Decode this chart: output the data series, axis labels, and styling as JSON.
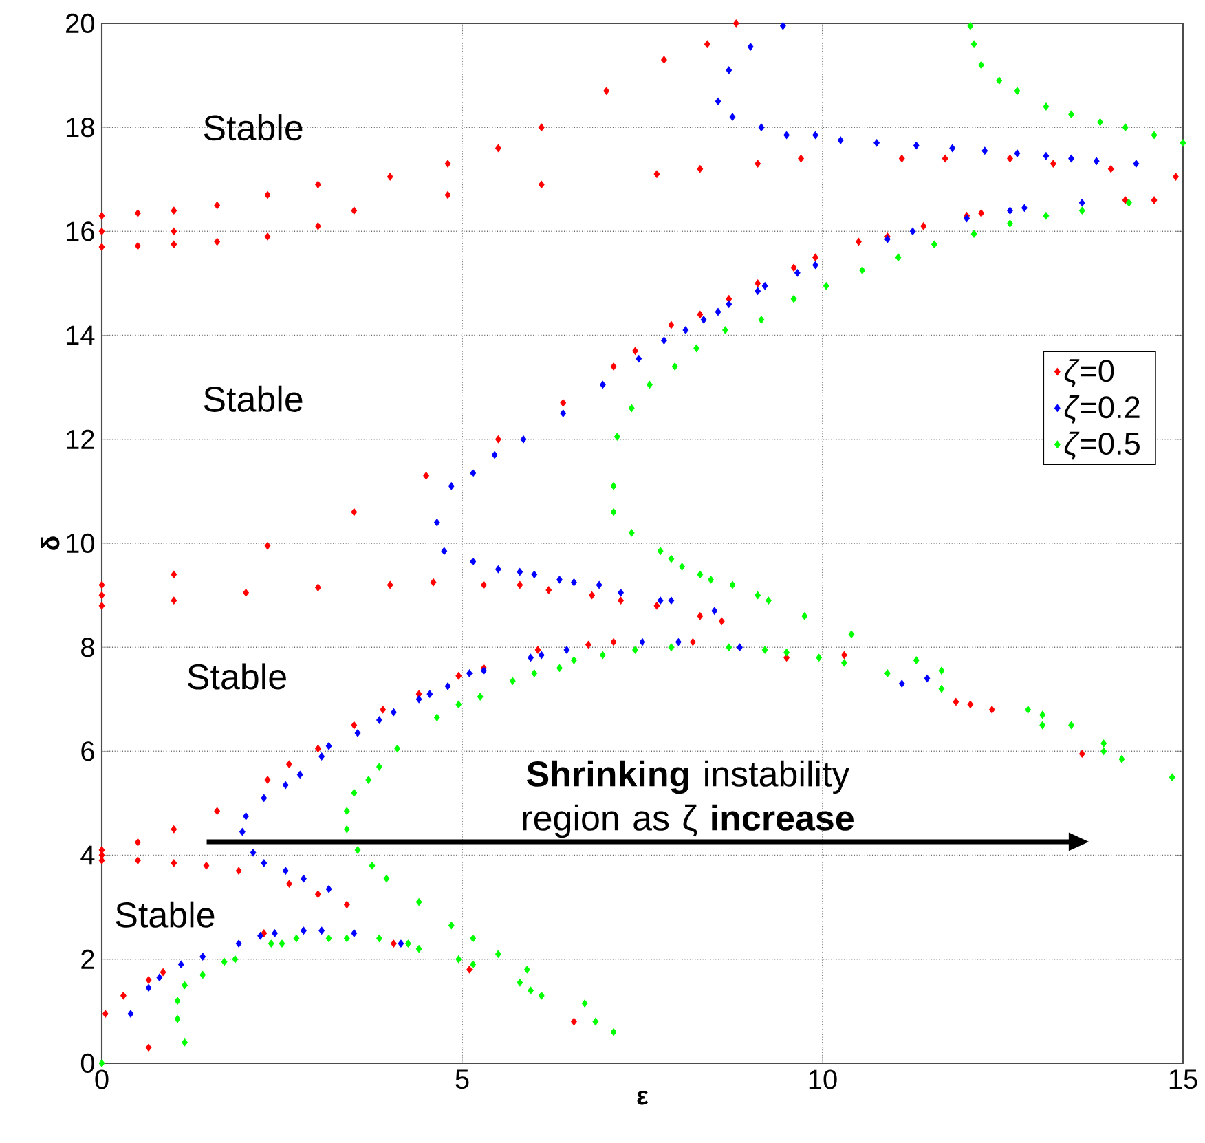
{
  "chart_data": {
    "type": "scatter",
    "xlabel": "ε",
    "ylabel": "δ",
    "xlim": [
      0,
      15
    ],
    "ylim": [
      0,
      20
    ],
    "xticks": [
      0,
      5,
      10,
      15
    ],
    "yticks": [
      0,
      2,
      4,
      6,
      8,
      10,
      12,
      14,
      16,
      18,
      20
    ],
    "grid": true,
    "legend": "right",
    "marker": "diamond",
    "annotations": [
      "Stable",
      "Stable",
      "Stable",
      "Stable",
      "**Shrinking** instability region as ζ **increase**"
    ],
    "series": [
      {
        "name": "*ζ*=0",
        "color": "#ff0000",
        "x": [
          0,
          0,
          0,
          0.5,
          0.5,
          1,
          1,
          1,
          1.6,
          1.6,
          2.3,
          2.3,
          3,
          3,
          3.5,
          4,
          4.8,
          4.8,
          5.5,
          6.1,
          6.1,
          7,
          7.7,
          7.8,
          8.3,
          8.4,
          8.8,
          9.1,
          9.7,
          11.1,
          11.7,
          12.6,
          13.2,
          14.0,
          0,
          0,
          0,
          1,
          1,
          2,
          2.3,
          3,
          3.5,
          4,
          4.5,
          4.6,
          5.3,
          5.5,
          5.8,
          6.2,
          6.4,
          6.8,
          7.1,
          7.2,
          7.4,
          7.7,
          7.9,
          8.3,
          8.3,
          8.6,
          8.7,
          9.1,
          9.5,
          9.6,
          9.9,
          10.5,
          10.9,
          11.4,
          12.0,
          12.2,
          14.2,
          14.6,
          14.9,
          0,
          0,
          0,
          0.5,
          0.5,
          1,
          1,
          1.45,
          1.6,
          1.9,
          2.3,
          2.6,
          2.6,
          3,
          3,
          3.4,
          3.5,
          3.9,
          4.05,
          4.4,
          4.95,
          5.1,
          5.3,
          6.05,
          6.55,
          6.75,
          7.1,
          8.2,
          10.3,
          11.85,
          12.05,
          12.35,
          13.6,
          0.05,
          0.3,
          0.65,
          0.65,
          0.85,
          2.25
        ],
        "values": [
          15.7,
          16.0,
          16.3,
          15.72,
          16.35,
          15.75,
          16.0,
          16.4,
          15.8,
          16.5,
          15.9,
          16.7,
          16.1,
          16.9,
          16.4,
          17.05,
          16.7,
          17.3,
          17.6,
          16.9,
          18.0,
          18.7,
          17.1,
          19.3,
          17.2,
          19.6,
          20.0,
          17.3,
          17.4,
          17.4,
          17.4,
          17.4,
          17.3,
          17.2,
          8.8,
          9.0,
          9.2,
          8.9,
          9.4,
          9.05,
          9.95,
          9.15,
          10.6,
          9.2,
          11.3,
          9.25,
          9.2,
          12.0,
          9.2,
          9.1,
          12.7,
          9.0,
          13.4,
          8.9,
          13.7,
          8.8,
          14.2,
          8.6,
          14.4,
          8.5,
          14.7,
          15.0,
          7.8,
          15.3,
          15.5,
          15.8,
          15.9,
          16.1,
          16.3,
          16.35,
          16.6,
          16.6,
          17.05,
          3.9,
          4.0,
          4.1,
          3.9,
          4.25,
          3.85,
          4.5,
          3.8,
          4.85,
          3.7,
          5.45,
          3.45,
          5.75,
          6.05,
          3.25,
          3.05,
          6.5,
          6.8,
          2.3,
          7.1,
          7.45,
          1.8,
          7.6,
          7.95,
          0.8,
          8.05,
          8.1,
          8.1,
          7.85,
          6.95,
          6.9,
          6.8,
          5.95,
          0.95,
          1.3,
          0.3,
          1.6,
          1.75,
          2.5
        ]
      },
      {
        "name": "*ζ*=0.2",
        "color": "#0000ff",
        "x": [
          0.4,
          0.65,
          0.8,
          1.1,
          1.4,
          1.9,
          2.2,
          2.4,
          2.8,
          3.05,
          3.5,
          4.15,
          1.95,
          2.0,
          2.25,
          2.55,
          2.75,
          3.05,
          3.15,
          3.55,
          3.85,
          4.05,
          4.4,
          4.55,
          4.8,
          5.1,
          5.3,
          5.95,
          6.1,
          6.45,
          7.5,
          8.0,
          8.85,
          11.1,
          11.45,
          2.1,
          2.25,
          2.55,
          2.8,
          3.15,
          4.65,
          4.85,
          5.15,
          5.45,
          5.85,
          6.4,
          6.95,
          7.45,
          7.8,
          8.1,
          8.35,
          8.55,
          8.7,
          9.1,
          9.2,
          9.65,
          9.9,
          10.9,
          11.25,
          12.0,
          12.6,
          12.8,
          13.6,
          4.75,
          5.15,
          5.5,
          5.8,
          6.0,
          6.35,
          6.55,
          6.9,
          7.2,
          7.75,
          7.9,
          8.5,
          8.55,
          8.7,
          9.0,
          9.45,
          8.75,
          9.15,
          9.5,
          9.9,
          10.25,
          10.75,
          11.3,
          11.8,
          12.25,
          12.7,
          13.1,
          13.45,
          13.8,
          14.35
        ],
        "values": [
          0.95,
          1.45,
          1.65,
          1.9,
          2.05,
          2.3,
          2.45,
          2.5,
          2.55,
          2.55,
          2.5,
          2.3,
          4.45,
          4.75,
          5.1,
          5.35,
          5.55,
          5.9,
          6.1,
          6.35,
          6.6,
          6.75,
          7.0,
          7.1,
          7.25,
          7.5,
          7.55,
          7.8,
          7.85,
          7.95,
          8.1,
          8.1,
          8.0,
          7.3,
          7.4,
          4.05,
          3.85,
          3.7,
          3.55,
          3.35,
          10.4,
          11.1,
          11.35,
          11.7,
          12.0,
          12.5,
          13.05,
          13.55,
          13.9,
          14.1,
          14.3,
          14.45,
          14.6,
          14.85,
          14.95,
          15.2,
          15.35,
          15.85,
          16.0,
          16.25,
          16.4,
          16.45,
          16.55,
          9.85,
          9.65,
          9.5,
          9.45,
          9.4,
          9.3,
          9.25,
          9.2,
          9.05,
          8.9,
          8.9,
          8.7,
          18.5,
          19.1,
          19.55,
          19.95,
          18.2,
          18.0,
          17.85,
          17.85,
          17.75,
          17.7,
          17.65,
          17.6,
          17.55,
          17.5,
          17.45,
          17.4,
          17.35,
          17.3
        ]
      },
      {
        "name": "*ζ*=0.5",
        "color": "#00ff00",
        "x": [
          0,
          1.05,
          1.15,
          1.05,
          1.15,
          1.4,
          1.7,
          1.85,
          2.35,
          2.5,
          2.7,
          3.15,
          3.4,
          3.85,
          4.25,
          4.4,
          3.4,
          3.4,
          3.5,
          3.7,
          3.85,
          4.1,
          4.65,
          4.95,
          5.25,
          5.7,
          6.0,
          6.35,
          6.55,
          6.95,
          7.4,
          7.9,
          8.7,
          9.2,
          9.5,
          9.95,
          10.3,
          10.9,
          11.3,
          11.65,
          11.65,
          12.85,
          13.05,
          13.05,
          13.45,
          13.9,
          13.9,
          14.15,
          14.85,
          3.55,
          3.75,
          3.95,
          4.4,
          4.85,
          5.15,
          5.5,
          5.9,
          6.1,
          6.7,
          6.85,
          7.1,
          4.95,
          5.15,
          5.8,
          5.95,
          7.1,
          7.15,
          7.35,
          7.6,
          7.95,
          8.25,
          8.65,
          9.15,
          9.6,
          10.05,
          10.55,
          11.05,
          11.55,
          12.1,
          12.6,
          13.1,
          13.6,
          14.25,
          7.1,
          7.35,
          7.75,
          7.9,
          8.05,
          8.3,
          8.45,
          8.75,
          9.1,
          9.25,
          9.75,
          10.4,
          12.05,
          12.1,
          12.2,
          12.45,
          12.7,
          13.1,
          13.45,
          13.85,
          14.2,
          14.6,
          15.0
        ],
        "values": [
          0,
          0.85,
          0.4,
          1.2,
          1.5,
          1.7,
          1.95,
          2.0,
          2.3,
          2.3,
          2.4,
          2.4,
          2.4,
          2.4,
          2.3,
          2.2,
          4.5,
          4.85,
          5.2,
          5.45,
          5.7,
          6.05,
          6.65,
          6.9,
          7.05,
          7.35,
          7.5,
          7.6,
          7.75,
          7.85,
          7.95,
          8.0,
          8.0,
          7.95,
          7.9,
          7.8,
          7.7,
          7.5,
          7.75,
          7.55,
          7.2,
          6.8,
          6.7,
          6.5,
          6.5,
          6.15,
          6.0,
          5.85,
          5.5,
          4.1,
          3.8,
          3.55,
          3.1,
          2.65,
          2.4,
          2.1,
          1.8,
          1.3,
          1.15,
          0.8,
          0.6,
          2.0,
          1.9,
          1.55,
          1.4,
          11.1,
          12.05,
          12.6,
          13.05,
          13.4,
          13.75,
          14.1,
          14.3,
          14.7,
          14.95,
          15.25,
          15.5,
          15.75,
          15.95,
          16.15,
          16.3,
          16.4,
          16.55,
          10.6,
          10.2,
          9.85,
          9.7,
          9.55,
          9.4,
          9.3,
          9.2,
          9.0,
          8.9,
          8.6,
          8.25,
          19.95,
          19.6,
          19.2,
          18.9,
          18.7,
          18.4,
          18.25,
          18.1,
          18.0,
          17.85,
          17.7
        ]
      }
    ]
  }
}
